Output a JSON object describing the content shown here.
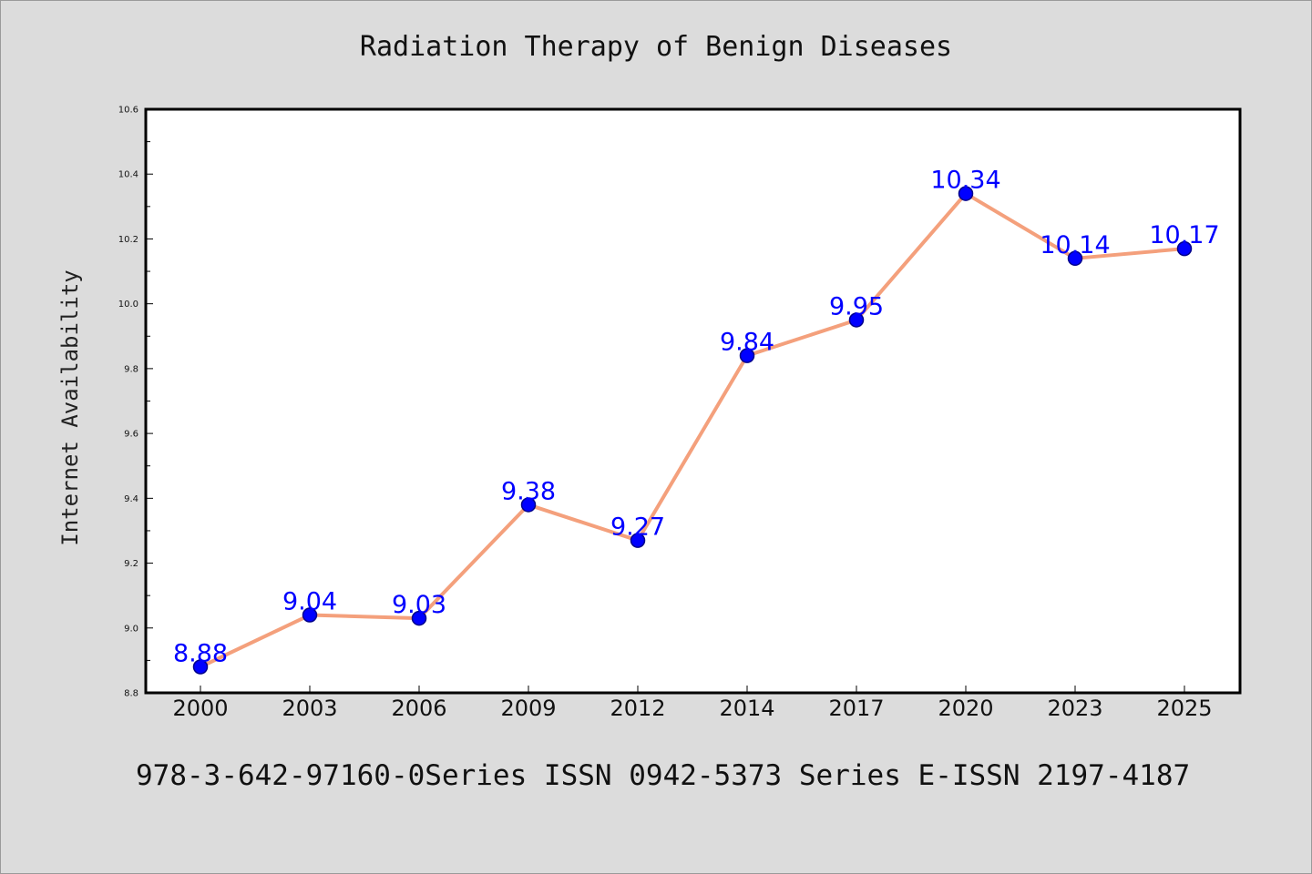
{
  "chart_data": {
    "type": "line",
    "title": "Radiation Therapy of Benign Diseases",
    "xlabel": "",
    "ylabel": "Internet Availability",
    "categories": [
      "2000",
      "2003",
      "2006",
      "2009",
      "2012",
      "2014",
      "2017",
      "2020",
      "2023",
      "2025"
    ],
    "values": [
      8.88,
      9.04,
      9.03,
      9.38,
      9.27,
      9.84,
      9.95,
      10.34,
      10.14,
      10.17
    ],
    "value_labels": [
      "8.88",
      "9.04",
      "9.03",
      "9.38",
      "9.27",
      "9.84",
      "9.95",
      "10.34",
      "10.14",
      "10.17"
    ],
    "ylim": [
      8.8,
      10.6
    ],
    "yticks": [
      "8.8",
      "9.0",
      "9.2",
      "9.4",
      "9.6",
      "9.8",
      "10.0",
      "10.2",
      "10.4",
      "10.6"
    ],
    "grid": false,
    "legend": "none",
    "colors": {
      "line": "#f4a07c",
      "marker": "#0000ff",
      "marker_edge": "#00008b",
      "data_label": "#0000ff",
      "plot_background": "#ffffff",
      "figure_background": "#dcdcdc"
    }
  },
  "footer": {
    "text": "978-3-642-97160-0Series ISSN 0942-5373 Series E-ISSN 2197-4187"
  }
}
